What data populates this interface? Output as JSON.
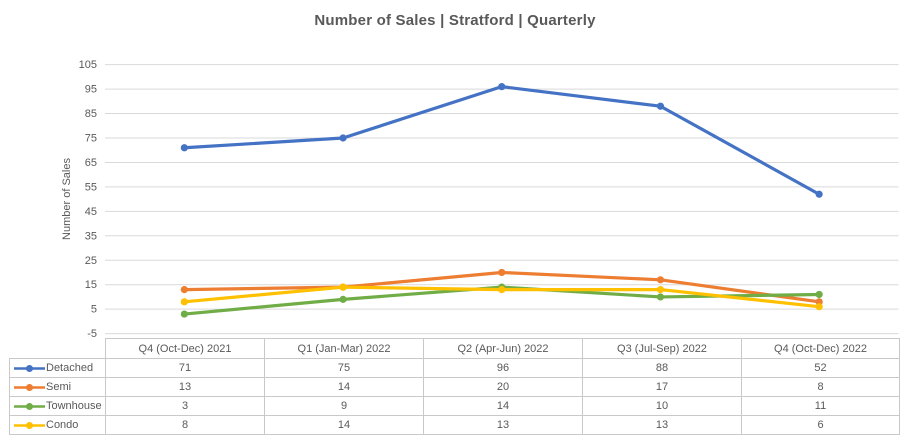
{
  "title": "Number of Sales | Stratford | Quarterly",
  "chart_data": {
    "type": "line",
    "title": "Number of Sales | Stratford | Quarterly",
    "xlabel": "",
    "ylabel": "Number of Sales",
    "ylim": [
      -5,
      105
    ],
    "yticks": [
      105,
      95,
      85,
      75,
      65,
      55,
      45,
      35,
      25,
      15,
      5,
      -5
    ],
    "grid": true,
    "legend_position": "data-table-left-column",
    "marker": "circle",
    "categories": [
      "Q4 (Oct-Dec) 2021",
      "Q1 (Jan-Mar) 2022",
      "Q2 (Apr-Jun) 2022",
      "Q3 (Jul-Sep) 2022",
      "Q4 (Oct-Dec) 2022"
    ],
    "series": [
      {
        "name": "Detached",
        "color": "#4472C4",
        "values": [
          71,
          75,
          96,
          88,
          52
        ]
      },
      {
        "name": "Semi",
        "color": "#ED7D31",
        "values": [
          13,
          14,
          20,
          17,
          8
        ]
      },
      {
        "name": "Townhouse",
        "color": "#70AD47",
        "values": [
          3,
          9,
          14,
          10,
          11
        ]
      },
      {
        "name": "Condo",
        "color": "#FFC000",
        "values": [
          8,
          14,
          13,
          13,
          6
        ]
      }
    ]
  },
  "colors": {
    "title_text": "#595959",
    "axis_text": "#595959",
    "gridline": "#D9D9D9",
    "table_border": "#C9C9C9",
    "table_text": "#595959",
    "background": "#FFFFFF"
  }
}
